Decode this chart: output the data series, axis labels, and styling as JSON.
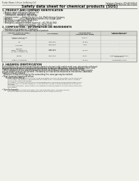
{
  "bg_color": "#f0f0eb",
  "header_left": "Product Name: Lithium Ion Battery Cell",
  "header_right_line1": "Substance Number: SPS-049-0001-0",
  "header_right_line2": "Established / Revision: Dec.7.2010",
  "title": "Safety data sheet for chemical products (SDS)",
  "section1_title": "1. PRODUCT AND COMPANY IDENTIFICATION",
  "section1_lines": [
    "  • Product name: Lithium Ion Battery Cell",
    "  • Product code: Cylindrical-type cell",
    "      (IHR18650U, IHR18650J, IHR18650A)",
    "  • Company name:      Sanyo Electric Co., Ltd., Mobile Energy Company",
    "  • Address:              200-1  Kannondaira, Sumoto-City, Hyogo, Japan",
    "  • Telephone number: +81-799-26-4111",
    "  • Fax number: +81-799-26-4129",
    "  • Emergency telephone number (daytime): +81-799-26-3962",
    "                                (Night and holiday): +81-799-26-4101"
  ],
  "section2_title": "2. COMPOSITION / INFORMATION ON INGREDIENTS",
  "section2_intro": "  • Substance or preparation: Preparation",
  "section2_sub": "  • Information about the chemical nature of product:",
  "table_col_names": [
    "Common chemical name /\nSeveral name",
    "CAS number",
    "Concentration /\nConcentration range",
    "Classification and\nhazard labeling"
  ],
  "table_rows": [
    [
      "Lithium cobalt oxide\n(LiMnxCoyO2(x))",
      "-",
      "30-40%",
      "-"
    ],
    [
      "Iron",
      "7439-89-6",
      "15-25%",
      "-"
    ],
    [
      "Aluminum",
      "7429-90-5",
      "2-6%",
      "-"
    ],
    [
      "Graphite\n(Metal in graphite-1)\n(AI-film in graphite-1)",
      "7782-42-5\n7429-90-5",
      "10-20%",
      "-"
    ],
    [
      "Copper",
      "7440-50-8",
      "5-10%",
      "Sensitization of the skin\ngroup No.2"
    ],
    [
      "Organic electrolyte",
      "-",
      "10-20%",
      "Inflammable liquid"
    ]
  ],
  "section3_title": "3. HAZARDS IDENTIFICATION",
  "section3_para": [
    "For the battery cell, chemical materials are stored in a hermetically sealed metal case, designed to withstand",
    "temperatures and pressure-stress-conditions during normal use. As a result, during normal use, there is no",
    "physical danger of ignition or explosion and there is no danger of hazardous materials leakage.",
    "   When exposed to a fire, added mechanical shocks, decomposed, when electric-shock or heavy misuse,",
    "the gas release vent will be operated. The battery cell case will be breached at fire-extreme, hazardous",
    "materials may be released.",
    "   Moreover, if heated strongly by the surrounding fire, some gas may be emitted."
  ],
  "section3_bullet1_title": "Most important hazard and effects:",
  "section3_human_title": "Human health effects:",
  "section3_human_lines": [
    "Inhalation: The release of the electrolyte has an anesthesia action and stimulates in respiratory tract.",
    "Skin contact: The release of the electrolyte stimulates a skin. The electrolyte skin contact causes a",
    "sore and stimulation on the skin.",
    "Eye contact: The release of the electrolyte stimulates eyes. The electrolyte eye contact causes a sore",
    "and stimulation on the eye. Especially, a substance that causes a strong inflammation of the eye is",
    "contained.",
    "Environmental effects: Since a battery cell remained in the environment, do not throw out it into the",
    "environment."
  ],
  "section3_specific_title": "Specific hazards:",
  "section3_specific_lines": [
    "If the electrolyte contacts with water, it will generate detrimental hydrogen fluoride.",
    "Since the used electrolyte is inflammable liquid, do not bring close to fire."
  ]
}
